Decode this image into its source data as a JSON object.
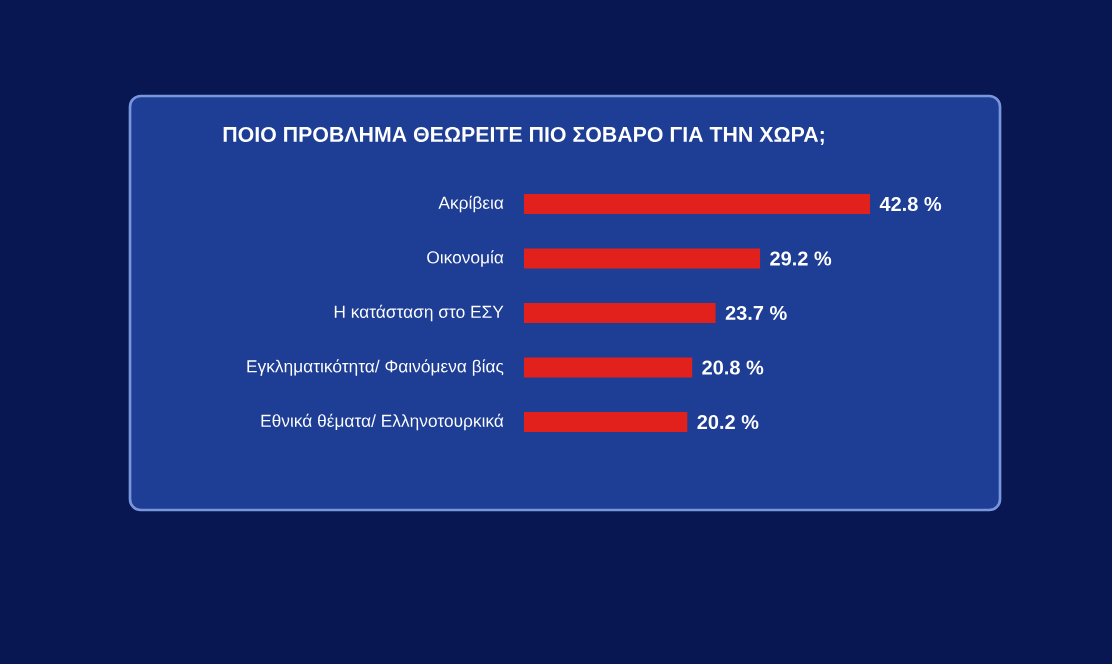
{
  "chart_data": {
    "type": "bar",
    "orientation": "horizontal",
    "title": "ΠΟΙΟ ΠΡΟΒΛΗΜΑ ΘΕΩΡΕΙΤΕ ΠΙΟ ΣΟΒΑΡΟ ΓΙΑ ΤΗΝ ΧΩΡΑ;",
    "categories": [
      "Ακρίβεια",
      "Οικονομία",
      "Η κατάσταση στο ΕΣΥ",
      "Εγκληματικότητα/ Φαινόμενα βίας",
      "Εθνικά θέματα/ Ελληνοτουρκικά"
    ],
    "values": [
      42.8,
      29.2,
      23.7,
      20.8,
      20.2
    ],
    "value_labels": [
      "42.8 %",
      "29.2 %",
      "23.7 %",
      "20.8 %",
      "20.2 %"
    ],
    "color": "#e3211c"
  }
}
